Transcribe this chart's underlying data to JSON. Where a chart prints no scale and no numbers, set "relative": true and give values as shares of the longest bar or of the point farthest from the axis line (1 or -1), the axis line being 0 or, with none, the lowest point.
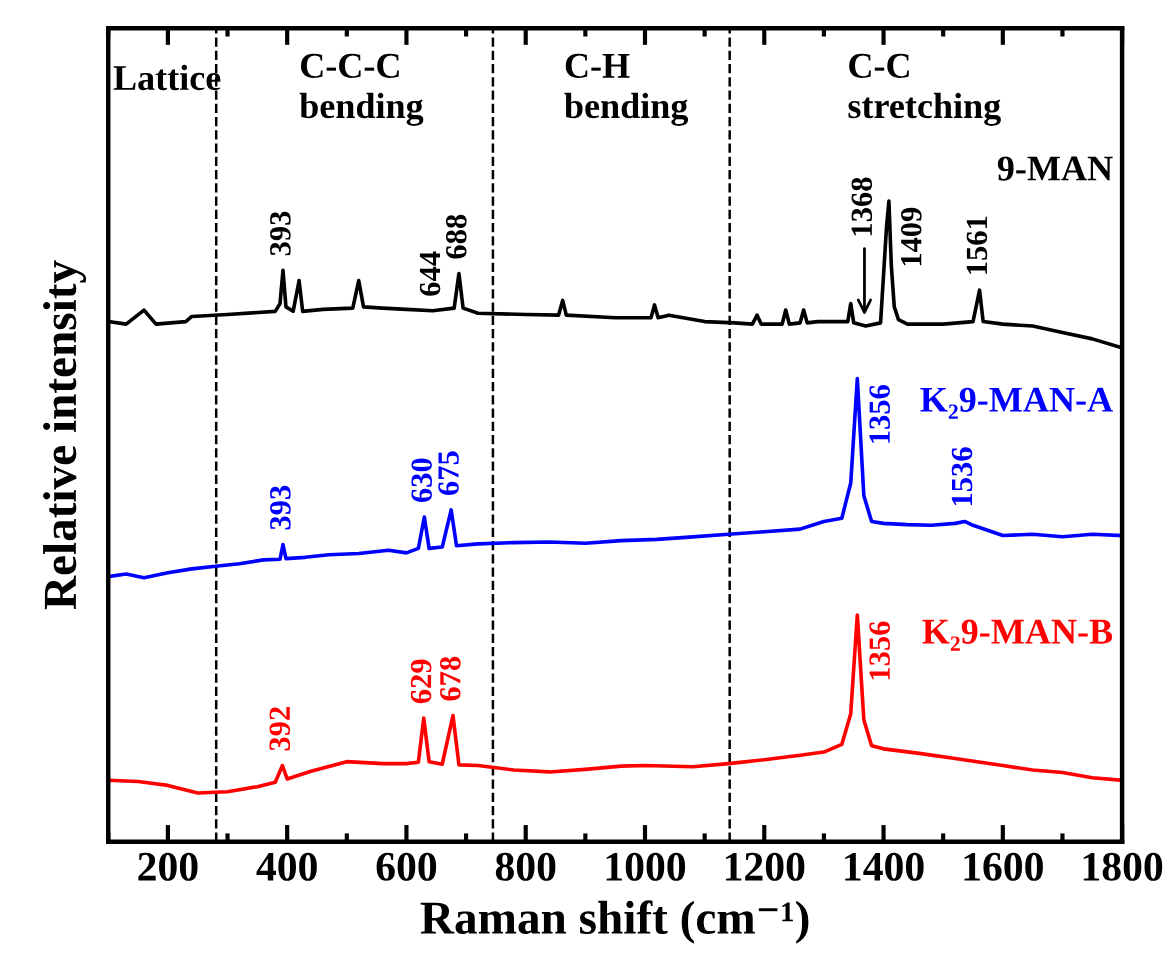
{
  "chart_data": {
    "type": "line",
    "relative": true,
    "xlabel": "Raman shift (cm⁻¹)",
    "ylabel": "Relative intensity",
    "xlim": [
      100,
      1800
    ],
    "xticks": [
      200,
      400,
      600,
      800,
      1000,
      1200,
      1400,
      1600,
      1800
    ],
    "tick_labels": "x",
    "grid": false,
    "legend": false,
    "series": [
      {
        "name": "9-MAN",
        "color": "#000000",
        "x": [
          100,
          130,
          160,
          180,
          230,
          240,
          300,
          380,
          388,
          393,
          398,
          410,
          420,
          426,
          460,
          510,
          520,
          528,
          560,
          600,
          644,
          680,
          688,
          695,
          720,
          800,
          855,
          862,
          868,
          950,
          1010,
          1016,
          1022,
          1040,
          1100,
          1150,
          1180,
          1188,
          1195,
          1230,
          1236,
          1242,
          1260,
          1266,
          1272,
          1290,
          1340,
          1345,
          1350,
          1370,
          1395,
          1405,
          1409,
          1413,
          1418,
          1425,
          1440,
          1500,
          1550,
          1561,
          1567,
          1600,
          1650,
          1700,
          1750,
          1800
        ],
        "values": [
          0.812,
          0.808,
          0.83,
          0.808,
          0.812,
          0.82,
          0.823,
          0.828,
          0.84,
          0.892,
          0.835,
          0.828,
          0.876,
          0.828,
          0.831,
          0.833,
          0.876,
          0.835,
          0.833,
          0.831,
          0.829,
          0.833,
          0.887,
          0.833,
          0.825,
          0.823,
          0.822,
          0.845,
          0.822,
          0.818,
          0.818,
          0.838,
          0.818,
          0.822,
          0.812,
          0.81,
          0.808,
          0.822,
          0.808,
          0.808,
          0.83,
          0.808,
          0.81,
          0.83,
          0.81,
          0.812,
          0.812,
          0.84,
          0.81,
          0.805,
          0.81,
          0.96,
          1.0,
          0.9,
          0.835,
          0.815,
          0.808,
          0.808,
          0.812,
          0.861,
          0.812,
          0.808,
          0.805,
          0.795,
          0.785,
          0.771
        ]
      },
      {
        "name": "K₂9-MAN-A",
        "color": "#0000ff",
        "x": [
          100,
          130,
          160,
          200,
          240,
          280,
          320,
          360,
          388,
          393,
          398,
          430,
          470,
          520,
          570,
          600,
          620,
          630,
          638,
          660,
          675,
          684,
          720,
          780,
          840,
          900,
          960,
          1020,
          1080,
          1140,
          1200,
          1260,
          1300,
          1330,
          1345,
          1356,
          1367,
          1380,
          1400,
          1440,
          1480,
          1520,
          1536,
          1550,
          1600,
          1650,
          1700,
          1750,
          1800
        ],
        "values": [
          0.414,
          0.418,
          0.412,
          0.42,
          0.426,
          0.43,
          0.434,
          0.44,
          0.441,
          0.464,
          0.442,
          0.444,
          0.448,
          0.45,
          0.455,
          0.451,
          0.458,
          0.507,
          0.458,
          0.46,
          0.518,
          0.462,
          0.465,
          0.467,
          0.468,
          0.466,
          0.47,
          0.472,
          0.476,
          0.48,
          0.484,
          0.488,
          0.5,
          0.505,
          0.56,
          0.723,
          0.54,
          0.5,
          0.497,
          0.495,
          0.494,
          0.497,
          0.5,
          0.494,
          0.478,
          0.48,
          0.476,
          0.48,
          0.478
        ]
      },
      {
        "name": "K₂9-MAN-B",
        "color": "#ff0000",
        "x": [
          100,
          150,
          200,
          250,
          300,
          350,
          380,
          392,
          400,
          440,
          500,
          560,
          600,
          620,
          629,
          638,
          660,
          678,
          688,
          720,
          780,
          840,
          900,
          960,
          1000,
          1080,
          1140,
          1200,
          1260,
          1300,
          1330,
          1345,
          1356,
          1367,
          1380,
          1400,
          1460,
          1520,
          1600,
          1650,
          1700,
          1750,
          1800
        ],
        "values": [
          0.096,
          0.094,
          0.088,
          0.076,
          0.078,
          0.086,
          0.093,
          0.119,
          0.098,
          0.11,
          0.125,
          0.122,
          0.122,
          0.124,
          0.193,
          0.125,
          0.121,
          0.197,
          0.12,
          0.119,
          0.112,
          0.109,
          0.113,
          0.118,
          0.119,
          0.117,
          0.122,
          0.128,
          0.135,
          0.14,
          0.152,
          0.2,
          0.354,
          0.19,
          0.15,
          0.145,
          0.138,
          0.13,
          0.119,
          0.112,
          0.108,
          0.1,
          0.096
        ]
      }
    ],
    "ref_lines": [
      {
        "axis": "x",
        "value": 281,
        "line_style": "dashed",
        "color": "#000000"
      },
      {
        "axis": "x",
        "value": 745,
        "line_style": "dashed",
        "color": "#000000"
      },
      {
        "axis": "x",
        "value": 1142,
        "line_style": "dashed",
        "color": "#000000"
      }
    ],
    "annotations": [
      "Lattice",
      "C-C-C\nbending",
      "C-H\nbending",
      "C-C\nstretching",
      {
        "text": "393",
        "x": 393,
        "y": 0.892
      },
      {
        "text": "644",
        "x": 644,
        "y": 0.829
      },
      {
        "text": "688",
        "x": 688,
        "y": 0.887
      },
      {
        "text": "1368",
        "x": 1368,
        "y": 0.808
      },
      {
        "text": "1409",
        "x": 1409,
        "y": 1.0
      },
      {
        "text": "1561",
        "x": 1561,
        "y": 0.861
      },
      {
        "text": "393",
        "x": 393,
        "y": 0.464
      },
      {
        "text": "630",
        "x": 630,
        "y": 0.507
      },
      {
        "text": "675",
        "x": 675,
        "y": 0.518
      },
      {
        "text": "1356",
        "x": 1356,
        "y": 0.723
      },
      {
        "text": "1536",
        "x": 1536,
        "y": 0.5
      },
      {
        "text": "392",
        "x": 392,
        "y": 0.119
      },
      {
        "text": "629",
        "x": 629,
        "y": 0.193
      },
      {
        "text": "678",
        "x": 678,
        "y": 0.197
      },
      {
        "text": "1356",
        "x": 1356,
        "y": 0.354
      }
    ]
  }
}
